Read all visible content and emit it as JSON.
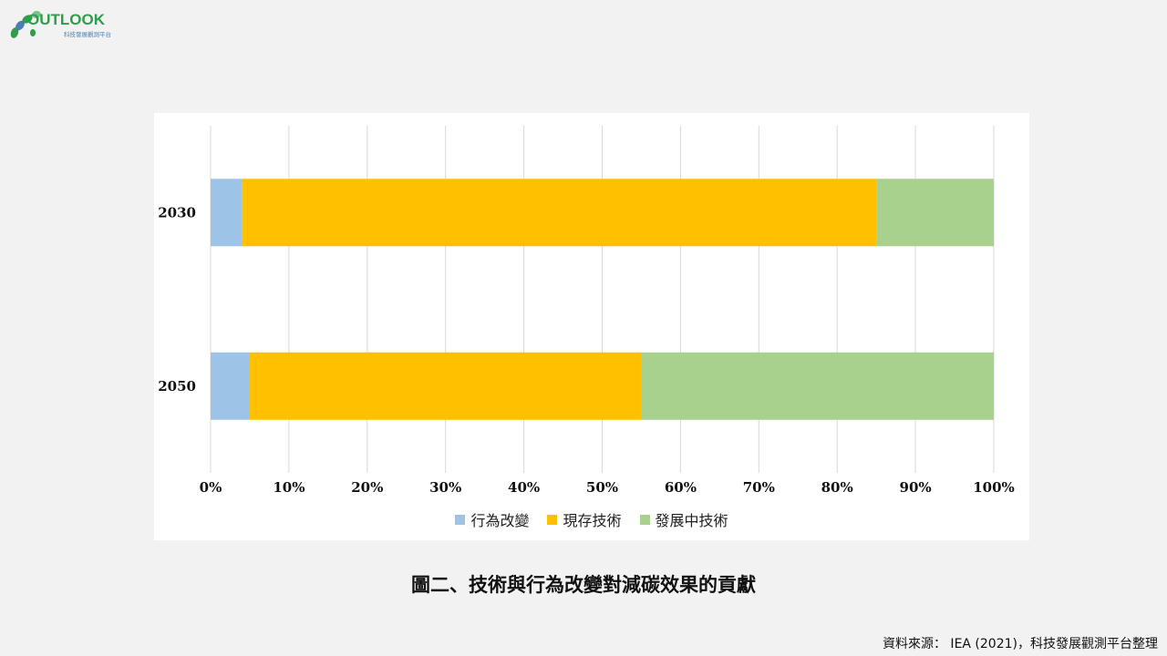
{
  "logo": {
    "text": "OUTLOOK",
    "subtitle": "科技發展觀測平台",
    "accent_green": "#2e9e4a",
    "accent_blue": "#4a7fb0"
  },
  "chart_data": {
    "type": "bar",
    "orientation": "horizontal",
    "stacked": true,
    "percent": true,
    "categories": [
      "2030",
      "2050"
    ],
    "series": [
      {
        "name": "行為改變",
        "values": [
          4,
          5
        ],
        "color": "#9dc3e6"
      },
      {
        "name": "現存技術",
        "values": [
          81,
          50
        ],
        "color": "#ffc000"
      },
      {
        "name": "發展中技術",
        "values": [
          15,
          45
        ],
        "color": "#a9d18e"
      }
    ],
    "xticks": [
      "0%",
      "10%",
      "20%",
      "30%",
      "40%",
      "50%",
      "60%",
      "70%",
      "80%",
      "90%",
      "100%"
    ],
    "xlim": [
      0,
      100
    ],
    "grid": true,
    "legend_position": "bottom"
  },
  "caption": "圖二、技術與行為改變對減碳效果的貢獻",
  "source": "資料來源： IEA (2021)，科技發展觀測平台整理"
}
